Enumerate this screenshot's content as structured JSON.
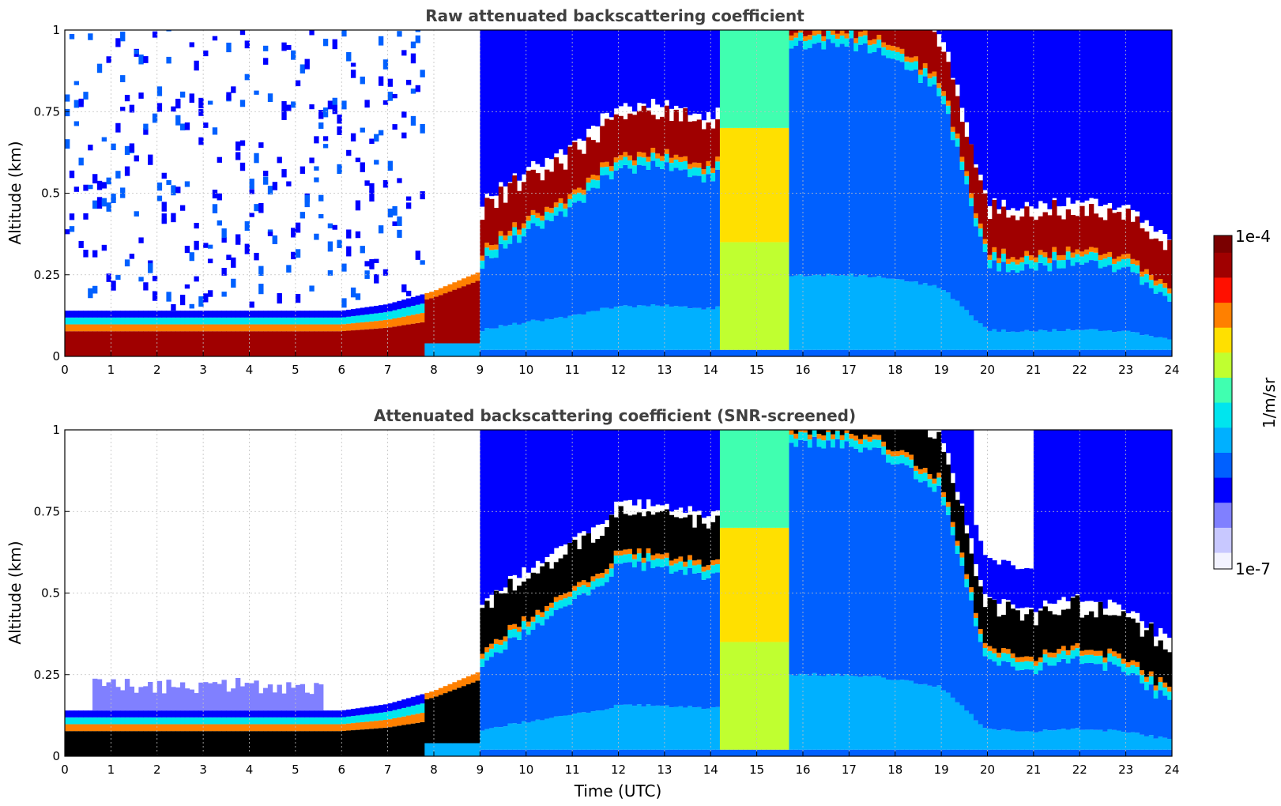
{
  "colors": {
    "colormap": [
      "#f2f2ff",
      "#c8c8ff",
      "#8080ff",
      "#0000ff",
      "#0060ff",
      "#00b0ff",
      "#00e5ee",
      "#40ffb0",
      "#c0ff30",
      "#ffe000",
      "#ff8000",
      "#ff1000",
      "#a00000",
      "#7a0000"
    ],
    "screened_saturation": "#000000",
    "grid": "#c0c0c0"
  },
  "chart_data": [
    {
      "type": "heatmap",
      "title": "Raw attenuated backscattering coefficient",
      "xlabel": "",
      "ylabel": "Altitude (km)",
      "xlim": [
        0,
        24
      ],
      "ylim": [
        0,
        1
      ],
      "xticks": [
        "0",
        "1",
        "2",
        "3",
        "4",
        "5",
        "6",
        "7",
        "8",
        "9",
        "10",
        "11",
        "12",
        "13",
        "14",
        "15",
        "16",
        "17",
        "18",
        "19",
        "20",
        "21",
        "22",
        "23",
        "24"
      ],
      "yticks": [
        "0",
        "0.25",
        "0.5",
        "0.75",
        "1"
      ],
      "grid": true,
      "features": {
        "surface_layer_top_km": [
          [
            0,
            0.14
          ],
          [
            6,
            0.14
          ],
          [
            7,
            0.16
          ],
          [
            8,
            0.2
          ],
          [
            9,
            0.26
          ]
        ],
        "cloud_base_km": [
          [
            9,
            0.32
          ],
          [
            10,
            0.42
          ],
          [
            11,
            0.5
          ],
          [
            12,
            0.62
          ],
          [
            13,
            0.62
          ],
          [
            14,
            0.58
          ],
          [
            15.7,
            1.0
          ],
          [
            17,
            1.0
          ],
          [
            18,
            0.95
          ],
          [
            19,
            0.85
          ],
          [
            20,
            0.32
          ],
          [
            21,
            0.3
          ],
          [
            22,
            0.34
          ],
          [
            23,
            0.3
          ],
          [
            24,
            0.2
          ]
        ],
        "precipitation_band_utc": [
          14.2,
          15.7
        ],
        "signal_void_utc": [
          7.8,
          9.0
        ]
      }
    },
    {
      "type": "heatmap",
      "title": "Attenuated backscattering coefficient (SNR-screened)",
      "xlabel": "Time (UTC)",
      "ylabel": "Altitude (km)",
      "xlim": [
        0,
        24
      ],
      "ylim": [
        0,
        1
      ],
      "xticks": [
        "0",
        "1",
        "2",
        "3",
        "4",
        "5",
        "6",
        "7",
        "8",
        "9",
        "10",
        "11",
        "12",
        "13",
        "14",
        "15",
        "16",
        "17",
        "18",
        "19",
        "20",
        "21",
        "22",
        "23",
        "24"
      ],
      "yticks": [
        "0",
        "0.25",
        "0.5",
        "0.75",
        "1"
      ],
      "grid": true
    }
  ],
  "colorbar": {
    "label": "1/m/sr",
    "max_label": "1e-4",
    "min_label": "1e-7",
    "scale": "log",
    "range": [
      1e-07,
      0.0001
    ]
  }
}
